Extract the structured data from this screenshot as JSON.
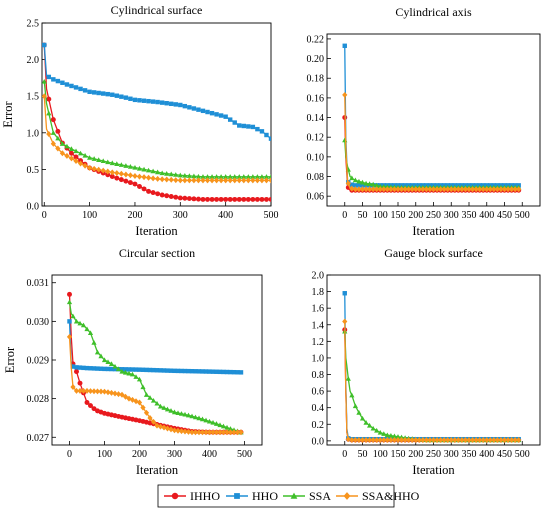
{
  "series_styles": [
    {
      "name": "IHHO",
      "color": "#e8191e",
      "marker": "circle"
    },
    {
      "name": "HHO",
      "color": "#1f8fd6",
      "marker": "square"
    },
    {
      "name": "SSA",
      "color": "#3fbf2a",
      "marker": "triangle"
    },
    {
      "name": "SSA&HHO",
      "color": "#f7941d",
      "marker": "diamond"
    }
  ],
  "legend": {
    "placement": "bottom-center",
    "entries": [
      "IHHO",
      "HHO",
      "SSA",
      "SSA&HHO"
    ]
  },
  "chart_data": [
    {
      "type": "line",
      "title": "Cylindrical surface",
      "xlabel": "Iteration",
      "ylabel": "Error",
      "xlim": [
        -5,
        500
      ],
      "ylim": [
        0,
        2.5
      ],
      "xticks": [
        0,
        100,
        200,
        300,
        400,
        500
      ],
      "yticks": [
        0.0,
        0.5,
        1.0,
        1.5,
        2.0,
        2.5
      ],
      "ytick_labels": [
        "0.0",
        "0.5",
        "1.0",
        "1.5",
        "2.0",
        "2.5"
      ],
      "series": [
        {
          "name": "IHHO",
          "x": [
            0,
            5,
            20,
            40,
            60,
            80,
            100,
            130,
            160,
            200,
            230,
            260,
            300,
            350,
            400,
            450,
            500
          ],
          "y": [
            2.2,
            1.6,
            1.18,
            0.86,
            0.72,
            0.62,
            0.52,
            0.45,
            0.38,
            0.3,
            0.2,
            0.15,
            0.11,
            0.09,
            0.09,
            0.09,
            0.09
          ]
        },
        {
          "name": "HHO",
          "x": [
            0,
            5,
            20,
            50,
            80,
            100,
            150,
            180,
            200,
            250,
            300,
            350,
            400,
            430,
            460,
            480,
            500
          ],
          "y": [
            2.2,
            1.78,
            1.73,
            1.66,
            1.6,
            1.56,
            1.52,
            1.48,
            1.45,
            1.42,
            1.38,
            1.3,
            1.22,
            1.1,
            1.08,
            1.02,
            0.92
          ]
        },
        {
          "name": "SSA",
          "x": [
            0,
            5,
            20,
            40,
            60,
            80,
            100,
            140,
            180,
            220,
            260,
            300,
            350,
            400,
            450,
            500
          ],
          "y": [
            1.7,
            1.4,
            1.0,
            0.85,
            0.78,
            0.72,
            0.66,
            0.6,
            0.55,
            0.5,
            0.45,
            0.42,
            0.4,
            0.4,
            0.4,
            0.4
          ]
        },
        {
          "name": "SSA&HHO",
          "x": [
            0,
            5,
            20,
            40,
            60,
            80,
            100,
            150,
            200,
            250,
            300,
            350,
            400,
            450,
            500
          ],
          "y": [
            1.5,
            1.05,
            0.85,
            0.72,
            0.65,
            0.58,
            0.52,
            0.46,
            0.41,
            0.37,
            0.35,
            0.35,
            0.35,
            0.35,
            0.35
          ]
        }
      ]
    },
    {
      "type": "line",
      "title": "Cylindrical axis",
      "xlabel": "Iteration",
      "ylabel": "",
      "xlim": [
        -50,
        550
      ],
      "ylim": [
        0.05,
        0.225
      ],
      "xticks": [
        0,
        50,
        100,
        150,
        200,
        250,
        300,
        350,
        400,
        450,
        500
      ],
      "yticks": [
        0.06,
        0.08,
        0.1,
        0.12,
        0.14,
        0.16,
        0.18,
        0.2,
        0.22
      ],
      "ytick_labels": [
        "0.06",
        "0.08",
        "0.10",
        "0.12",
        "0.14",
        "0.16",
        "0.18",
        "0.20",
        "0.22"
      ],
      "series": [
        {
          "name": "IHHO",
          "x": [
            0,
            3,
            8,
            15,
            30,
            60,
            100,
            200,
            300,
            400,
            490
          ],
          "y": [
            0.14,
            0.1,
            0.07,
            0.066,
            0.066,
            0.066,
            0.066,
            0.066,
            0.066,
            0.066,
            0.066
          ]
        },
        {
          "name": "HHO",
          "x": [
            0,
            3,
            8,
            15,
            30,
            60,
            100,
            200,
            300,
            400,
            490
          ],
          "y": [
            0.213,
            0.12,
            0.075,
            0.072,
            0.071,
            0.071,
            0.071,
            0.071,
            0.071,
            0.071,
            0.071
          ]
        },
        {
          "name": "SSA",
          "x": [
            0,
            3,
            8,
            15,
            25,
            40,
            60,
            80,
            100,
            150,
            200,
            300,
            400,
            490
          ],
          "y": [
            0.117,
            0.1,
            0.09,
            0.08,
            0.077,
            0.075,
            0.073,
            0.072,
            0.07,
            0.069,
            0.069,
            0.069,
            0.069,
            0.069
          ]
        },
        {
          "name": "SSA&HHO",
          "x": [
            0,
            3,
            8,
            15,
            30,
            60,
            100,
            200,
            300,
            400,
            490
          ],
          "y": [
            0.163,
            0.11,
            0.075,
            0.068,
            0.067,
            0.067,
            0.067,
            0.067,
            0.067,
            0.067,
            0.067
          ]
        }
      ]
    },
    {
      "type": "line",
      "title": "Circular section",
      "xlabel": "Iteration",
      "ylabel": "Error",
      "xlim": [
        -50,
        550
      ],
      "ylim": [
        0.0268,
        0.0312
      ],
      "xticks": [
        0,
        100,
        200,
        300,
        400,
        500
      ],
      "yticks": [
        0.027,
        0.028,
        0.029,
        0.03,
        0.031
      ],
      "ytick_labels": [
        "0.027",
        "0.028",
        "0.029",
        "0.030",
        "0.031"
      ],
      "series": [
        {
          "name": "IHHO",
          "x": [
            0,
            5,
            10,
            20,
            30,
            50,
            75,
            100,
            150,
            200,
            250,
            300,
            350,
            400,
            490
          ],
          "y": [
            0.0307,
            0.0296,
            0.0289,
            0.0287,
            0.0284,
            0.0279,
            0.0277,
            0.02762,
            0.02752,
            0.02743,
            0.02733,
            0.02723,
            0.02715,
            0.02713,
            0.02713
          ]
        },
        {
          "name": "HHO",
          "x": [
            0,
            5,
            10,
            20,
            50,
            100,
            200,
            300,
            400,
            490
          ],
          "y": [
            0.03,
            0.0289,
            0.02883,
            0.02881,
            0.02879,
            0.02877,
            0.02875,
            0.02872,
            0.0287,
            0.02868
          ]
        },
        {
          "name": "SSA",
          "x": [
            0,
            5,
            20,
            40,
            60,
            80,
            100,
            120,
            150,
            180,
            200,
            220,
            260,
            300,
            340,
            380,
            420,
            460,
            490
          ],
          "y": [
            0.0305,
            0.0302,
            0.03,
            0.0299,
            0.0297,
            0.0292,
            0.029,
            0.0289,
            0.0287,
            0.02863,
            0.0285,
            0.0281,
            0.0278,
            0.02765,
            0.02757,
            0.02747,
            0.02735,
            0.02722,
            0.02713
          ]
        },
        {
          "name": "SSA&HHO",
          "x": [
            0,
            5,
            10,
            20,
            50,
            100,
            150,
            170,
            200,
            230,
            250,
            300,
            350,
            400,
            490
          ],
          "y": [
            0.0296,
            0.0288,
            0.0283,
            0.0282,
            0.0282,
            0.02818,
            0.0281,
            0.028,
            0.0279,
            0.0275,
            0.0273,
            0.02718,
            0.02713,
            0.02713,
            0.02713
          ]
        }
      ]
    },
    {
      "type": "line",
      "title": "Gauge block surface",
      "xlabel": "Iteration",
      "ylabel": "",
      "xlim": [
        -50,
        550
      ],
      "ylim": [
        -0.05,
        2.0
      ],
      "xticks": [
        0,
        50,
        100,
        150,
        200,
        250,
        300,
        350,
        400,
        450,
        500
      ],
      "yticks": [
        0.0,
        0.2,
        0.4,
        0.6,
        0.8,
        1.0,
        1.2,
        1.4,
        1.6,
        1.8,
        2.0
      ],
      "ytick_labels": [
        "0.0",
        "0.2",
        "0.4",
        "0.6",
        "0.8",
        "1.0",
        "1.2",
        "1.4",
        "1.6",
        "1.8",
        "2.0"
      ],
      "series": [
        {
          "name": "IHHO",
          "x": [
            0,
            3,
            6,
            10,
            20,
            40,
            100,
            200,
            300,
            400,
            490
          ],
          "y": [
            1.34,
            0.6,
            0.1,
            0.02,
            0.01,
            0.01,
            0.01,
            0.01,
            0.01,
            0.01,
            0.01
          ]
        },
        {
          "name": "HHO",
          "x": [
            0,
            3,
            6,
            10,
            20,
            40,
            100,
            200,
            300,
            400,
            490
          ],
          "y": [
            1.78,
            0.7,
            0.15,
            0.03,
            0.02,
            0.02,
            0.02,
            0.02,
            0.02,
            0.02,
            0.02
          ]
        },
        {
          "name": "SSA",
          "x": [
            0,
            3,
            6,
            10,
            15,
            20,
            30,
            40,
            50,
            60,
            80,
            100,
            120,
            150,
            180,
            200,
            230,
            260,
            300,
            400,
            490
          ],
          "y": [
            1.32,
            1.0,
            0.9,
            0.75,
            0.6,
            0.55,
            0.42,
            0.34,
            0.27,
            0.22,
            0.15,
            0.1,
            0.07,
            0.05,
            0.03,
            0.02,
            0.01,
            0.01,
            0.01,
            0.01,
            0.01
          ]
        },
        {
          "name": "SSA&HHO",
          "x": [
            0,
            3,
            6,
            10,
            20,
            40,
            100,
            200,
            300,
            400,
            490
          ],
          "y": [
            1.44,
            0.6,
            0.1,
            0.02,
            0.01,
            0.01,
            0.01,
            0.01,
            0.01,
            0.01,
            0.01
          ]
        }
      ]
    }
  ]
}
